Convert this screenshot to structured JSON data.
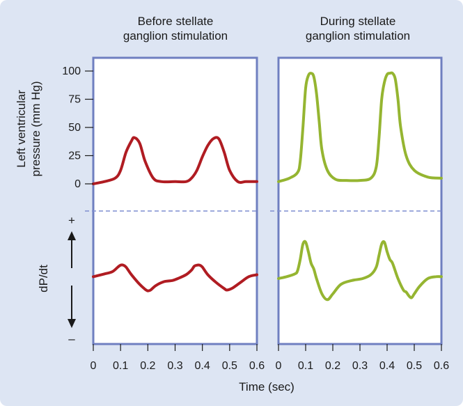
{
  "chart_data": {
    "type": "line",
    "x_axis": {
      "label": "Time (sec)",
      "ticks": [
        0,
        0.1,
        0.2,
        0.3,
        0.4,
        0.5,
        0.6
      ],
      "tick_labels": [
        "0",
        "0.1",
        "0.2",
        "0.3",
        "0.4",
        "0.5",
        "0.6"
      ],
      "range": [
        0,
        0.6
      ]
    },
    "top_y_axis": {
      "label_lines": [
        "Left ventricular",
        "pressure (mm Hg)"
      ],
      "ticks": [
        0,
        25,
        50,
        75,
        100
      ],
      "range": [
        0,
        100
      ]
    },
    "bottom_y_axis": {
      "label": "dP/dt",
      "plus_label": "+",
      "minus_label": "–",
      "range": [
        -1,
        1
      ]
    },
    "panels": [
      {
        "title_lines": [
          "Before stellate",
          "ganglion stimulation"
        ],
        "color": "#b01c22",
        "pressure": {
          "x": [
            0,
            0.04,
            0.08,
            0.1,
            0.12,
            0.14,
            0.15,
            0.17,
            0.19,
            0.22,
            0.25,
            0.3,
            0.34,
            0.36,
            0.38,
            0.4,
            0.42,
            0.44,
            0.46,
            0.48,
            0.5,
            0.53,
            0.56,
            0.6
          ],
          "y": [
            0,
            2,
            5,
            12,
            28,
            38,
            41,
            36,
            20,
            5,
            2,
            2,
            2,
            5,
            12,
            24,
            34,
            40,
            40,
            28,
            12,
            2,
            2,
            2
          ]
        },
        "dpdt": {
          "x": [
            0,
            0.04,
            0.07,
            0.09,
            0.1,
            0.11,
            0.12,
            0.14,
            0.17,
            0.19,
            0.2,
            0.21,
            0.23,
            0.26,
            0.29,
            0.31,
            0.34,
            0.36,
            0.37,
            0.38,
            0.39,
            0.4,
            0.42,
            0.45,
            0.48,
            0.49,
            0.51,
            0.54,
            0.57,
            0.6
          ],
          "y": [
            0.05,
            0.12,
            0.18,
            0.3,
            0.35,
            0.35,
            0.3,
            0.1,
            -0.15,
            -0.28,
            -0.32,
            -0.3,
            -0.18,
            -0.08,
            -0.05,
            0.0,
            0.1,
            0.22,
            0.32,
            0.35,
            0.35,
            0.3,
            0.1,
            -0.1,
            -0.26,
            -0.3,
            -0.25,
            -0.1,
            0.05,
            0.1
          ]
        }
      },
      {
        "title_lines": [
          "During stellate",
          "ganglion stimulation"
        ],
        "color": "#95b531",
        "pressure": {
          "x": [
            0,
            0.04,
            0.07,
            0.08,
            0.09,
            0.1,
            0.11,
            0.12,
            0.13,
            0.14,
            0.15,
            0.16,
            0.18,
            0.21,
            0.25,
            0.3,
            0.34,
            0.36,
            0.37,
            0.38,
            0.39,
            0.4,
            0.41,
            0.42,
            0.43,
            0.44,
            0.45,
            0.47,
            0.5,
            0.55,
            0.6
          ],
          "y": [
            2,
            5,
            10,
            20,
            50,
            85,
            96,
            98,
            95,
            80,
            55,
            30,
            12,
            4,
            3,
            3,
            5,
            15,
            40,
            75,
            90,
            97,
            98,
            98,
            93,
            75,
            50,
            25,
            12,
            6,
            5
          ]
        },
        "dpdt": {
          "x": [
            0,
            0.03,
            0.06,
            0.07,
            0.08,
            0.09,
            0.1,
            0.11,
            0.12,
            0.13,
            0.14,
            0.16,
            0.18,
            0.2,
            0.23,
            0.27,
            0.31,
            0.34,
            0.36,
            0.37,
            0.38,
            0.39,
            0.4,
            0.41,
            0.42,
            0.44,
            0.46,
            0.47,
            0.48,
            0.49,
            0.5,
            0.52,
            0.55,
            0.58,
            0.6
          ],
          "y": [
            0.0,
            0.05,
            0.12,
            0.2,
            0.5,
            0.9,
            0.95,
            0.7,
            0.4,
            0.25,
            0.0,
            -0.4,
            -0.55,
            -0.4,
            -0.15,
            -0.05,
            0.0,
            0.1,
            0.3,
            0.6,
            0.9,
            0.95,
            0.7,
            0.5,
            0.4,
            0.0,
            -0.3,
            -0.35,
            -0.45,
            -0.5,
            -0.4,
            -0.2,
            0.0,
            0.05,
            0.05
          ]
        }
      }
    ],
    "grid": false,
    "divider_style": "dashed",
    "frame_color": "#6f7fc0"
  }
}
